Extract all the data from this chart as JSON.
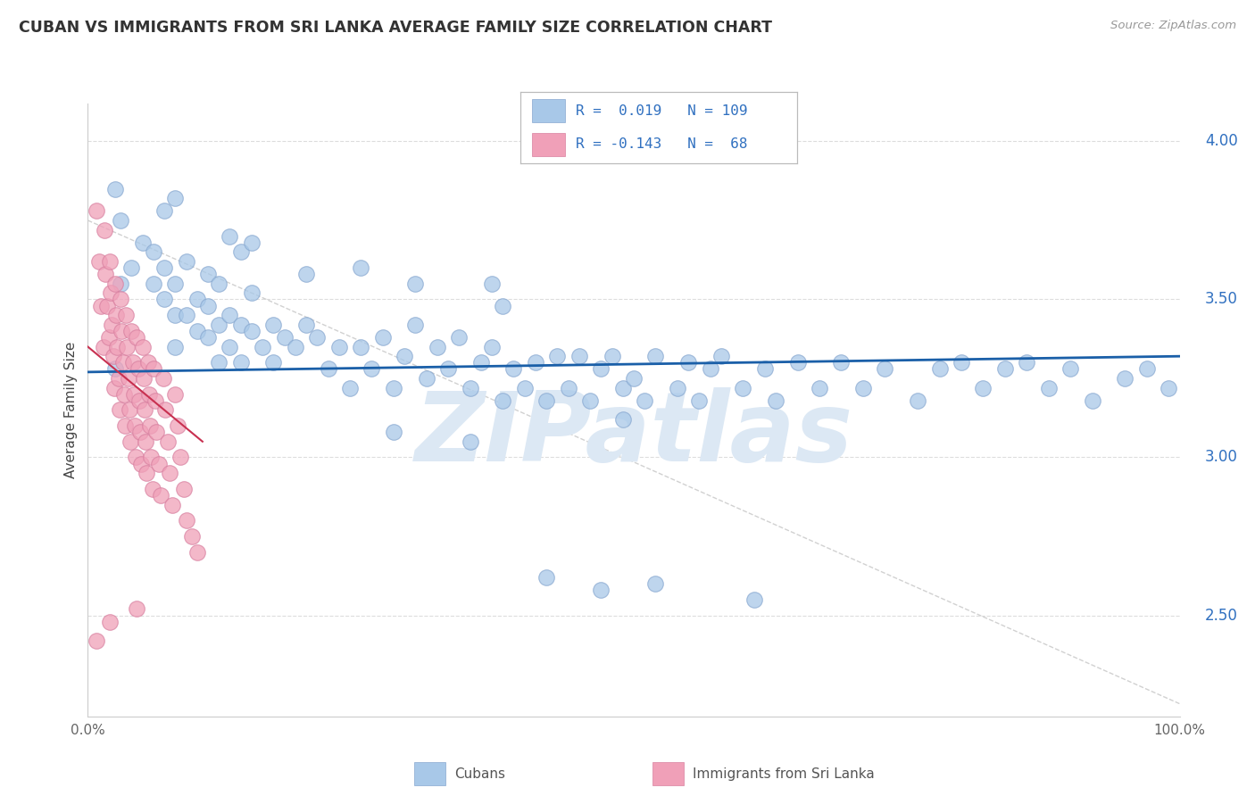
{
  "title": "CUBAN VS IMMIGRANTS FROM SRI LANKA AVERAGE FAMILY SIZE CORRELATION CHART",
  "source": "Source: ZipAtlas.com",
  "ylabel": "Average Family Size",
  "xlabel": "",
  "xlim": [
    0,
    1
  ],
  "ylim": [
    2.18,
    4.12
  ],
  "yticks_right": [
    2.5,
    3.0,
    3.5,
    4.0
  ],
  "xticks": [
    0.0,
    0.1,
    0.2,
    0.3,
    0.4,
    0.5,
    0.6,
    0.7,
    0.8,
    0.9,
    1.0
  ],
  "xtick_labels": [
    "0.0%",
    "",
    "",
    "",
    "",
    "",
    "",
    "",
    "",
    "",
    "100.0%"
  ],
  "blue_color": "#A8C8E8",
  "pink_color": "#F0A0B8",
  "blue_edge_color": "#88A8D0",
  "pink_edge_color": "#D880A0",
  "blue_line_color": "#1A5FA8",
  "pink_line_color": "#C83050",
  "title_color": "#333333",
  "source_color": "#999999",
  "right_axis_color": "#3070C0",
  "watermark_color": "#DCE8F4",
  "watermark_text": "ZIPatlas",
  "grid_color": "#DDDDDD",
  "cubans_x": [
    0.025,
    0.03,
    0.04,
    0.05,
    0.06,
    0.06,
    0.07,
    0.07,
    0.08,
    0.08,
    0.08,
    0.09,
    0.09,
    0.1,
    0.1,
    0.11,
    0.11,
    0.11,
    0.12,
    0.12,
    0.12,
    0.13,
    0.13,
    0.14,
    0.14,
    0.15,
    0.15,
    0.16,
    0.17,
    0.17,
    0.18,
    0.19,
    0.2,
    0.21,
    0.22,
    0.23,
    0.24,
    0.25,
    0.26,
    0.27,
    0.28,
    0.29,
    0.3,
    0.31,
    0.32,
    0.33,
    0.34,
    0.35,
    0.36,
    0.37,
    0.38,
    0.39,
    0.4,
    0.41,
    0.42,
    0.43,
    0.44,
    0.45,
    0.46,
    0.47,
    0.48,
    0.49,
    0.5,
    0.51,
    0.52,
    0.54,
    0.55,
    0.56,
    0.57,
    0.58,
    0.6,
    0.62,
    0.63,
    0.65,
    0.67,
    0.69,
    0.71,
    0.73,
    0.76,
    0.78,
    0.8,
    0.82,
    0.84,
    0.86,
    0.88,
    0.9,
    0.92,
    0.95,
    0.97,
    0.99,
    0.025,
    0.03,
    0.07,
    0.08,
    0.13,
    0.14,
    0.15,
    0.2,
    0.25,
    0.3,
    0.37,
    0.38,
    0.42,
    0.47,
    0.52,
    0.61,
    0.49,
    0.28,
    0.35
  ],
  "cubans_y": [
    3.28,
    3.55,
    3.6,
    3.68,
    3.65,
    3.55,
    3.6,
    3.5,
    3.55,
    3.45,
    3.35,
    3.62,
    3.45,
    3.5,
    3.4,
    3.58,
    3.48,
    3.38,
    3.55,
    3.42,
    3.3,
    3.45,
    3.35,
    3.42,
    3.3,
    3.52,
    3.4,
    3.35,
    3.42,
    3.3,
    3.38,
    3.35,
    3.42,
    3.38,
    3.28,
    3.35,
    3.22,
    3.35,
    3.28,
    3.38,
    3.22,
    3.32,
    3.42,
    3.25,
    3.35,
    3.28,
    3.38,
    3.22,
    3.3,
    3.35,
    3.18,
    3.28,
    3.22,
    3.3,
    3.18,
    3.32,
    3.22,
    3.32,
    3.18,
    3.28,
    3.32,
    3.22,
    3.25,
    3.18,
    3.32,
    3.22,
    3.3,
    3.18,
    3.28,
    3.32,
    3.22,
    3.28,
    3.18,
    3.3,
    3.22,
    3.3,
    3.22,
    3.28,
    3.18,
    3.28,
    3.3,
    3.22,
    3.28,
    3.3,
    3.22,
    3.28,
    3.18,
    3.25,
    3.28,
    3.22,
    3.85,
    3.75,
    3.78,
    3.82,
    3.7,
    3.65,
    3.68,
    3.58,
    3.6,
    3.55,
    3.55,
    3.48,
    2.62,
    2.58,
    2.6,
    2.55,
    3.12,
    3.08,
    3.05
  ],
  "srilanka_x": [
    0.008,
    0.01,
    0.012,
    0.014,
    0.015,
    0.016,
    0.018,
    0.019,
    0.02,
    0.021,
    0.022,
    0.023,
    0.024,
    0.025,
    0.026,
    0.027,
    0.028,
    0.029,
    0.03,
    0.031,
    0.032,
    0.033,
    0.034,
    0.035,
    0.036,
    0.037,
    0.038,
    0.039,
    0.04,
    0.041,
    0.042,
    0.043,
    0.044,
    0.045,
    0.046,
    0.047,
    0.048,
    0.049,
    0.05,
    0.051,
    0.052,
    0.053,
    0.054,
    0.055,
    0.056,
    0.057,
    0.058,
    0.059,
    0.06,
    0.062,
    0.063,
    0.065,
    0.067,
    0.069,
    0.071,
    0.073,
    0.075,
    0.077,
    0.08,
    0.082,
    0.085,
    0.088,
    0.09,
    0.095,
    0.1,
    0.008,
    0.02,
    0.045
  ],
  "srilanka_y": [
    3.78,
    3.62,
    3.48,
    3.35,
    3.72,
    3.58,
    3.48,
    3.38,
    3.62,
    3.52,
    3.42,
    3.32,
    3.22,
    3.55,
    3.45,
    3.35,
    3.25,
    3.15,
    3.5,
    3.4,
    3.3,
    3.2,
    3.1,
    3.45,
    3.35,
    3.25,
    3.15,
    3.05,
    3.4,
    3.3,
    3.2,
    3.1,
    3.0,
    3.38,
    3.28,
    3.18,
    3.08,
    2.98,
    3.35,
    3.25,
    3.15,
    3.05,
    2.95,
    3.3,
    3.2,
    3.1,
    3.0,
    2.9,
    3.28,
    3.18,
    3.08,
    2.98,
    2.88,
    3.25,
    3.15,
    3.05,
    2.95,
    2.85,
    3.2,
    3.1,
    3.0,
    2.9,
    2.8,
    2.75,
    2.7,
    2.42,
    2.48,
    2.52
  ],
  "blue_trend_x": [
    0.0,
    1.0
  ],
  "blue_trend_y": [
    3.27,
    3.32
  ],
  "pink_trend_x": [
    0.0,
    0.105
  ],
  "pink_trend_y": [
    3.35,
    3.05
  ],
  "diag_line_x": [
    0.0,
    1.0
  ],
  "diag_line_y": [
    3.75,
    2.22
  ]
}
